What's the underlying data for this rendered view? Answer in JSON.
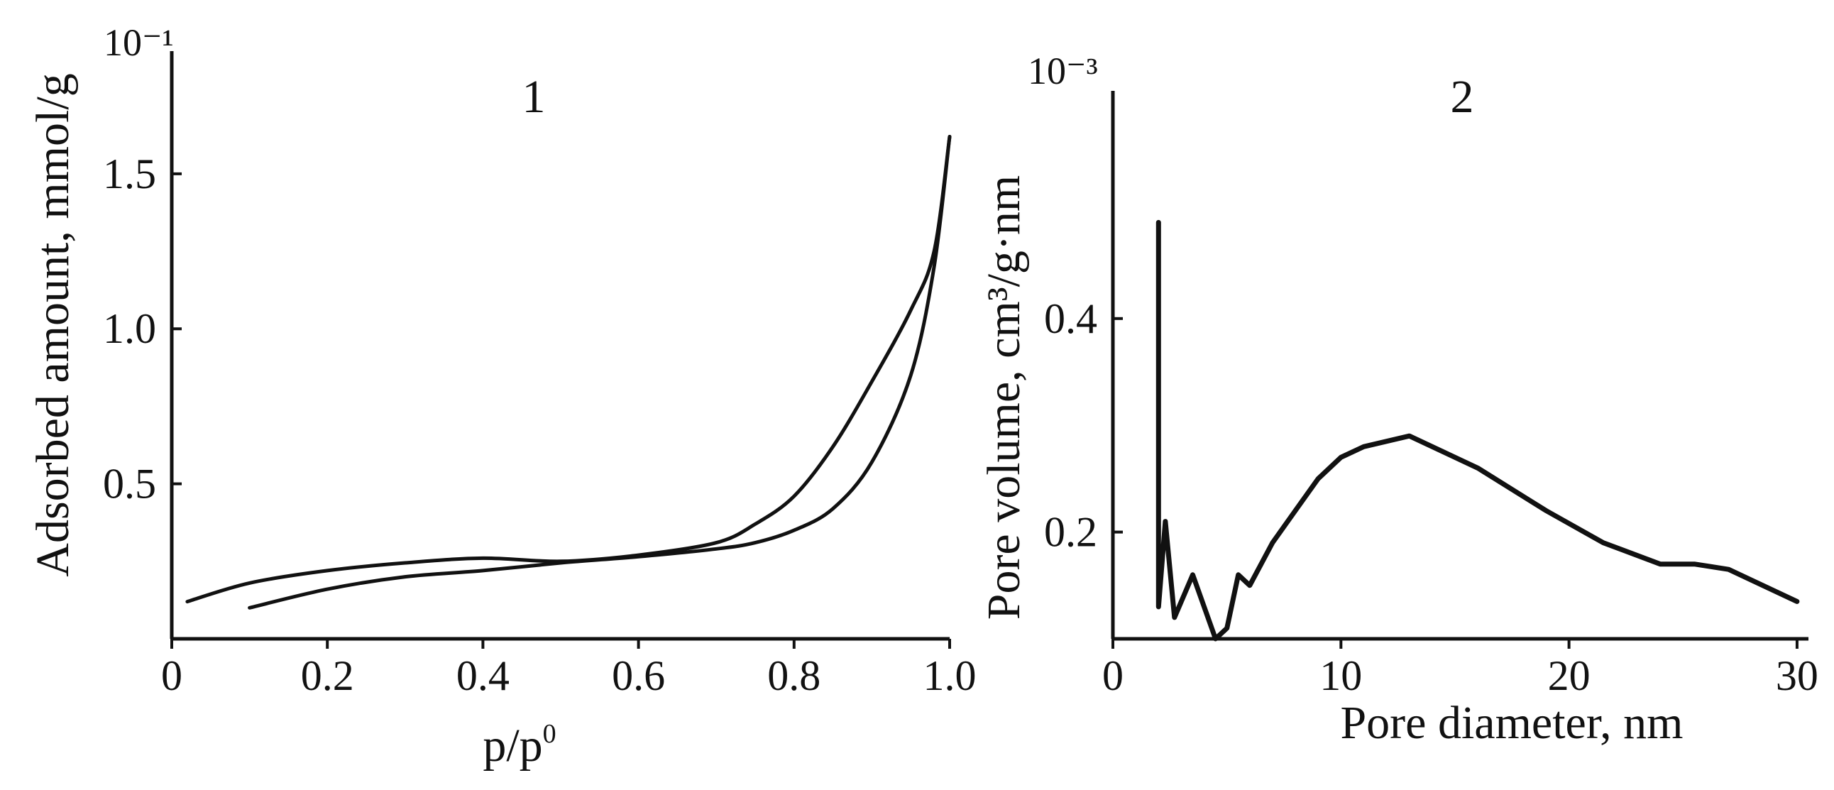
{
  "chart_data": [
    {
      "type": "line",
      "panel": "1",
      "title": "",
      "xlabel": "p/p⁰",
      "ylabel": "Adsorbed amount, mmol/g",
      "y_multiplier": "10⁻¹",
      "xlim": [
        0,
        1.0
      ],
      "ylim": [
        0,
        1.85
      ],
      "x_ticks": [
        "0",
        "0.2",
        "0.4",
        "0.6",
        "0.8",
        "1.0"
      ],
      "y_ticks": [
        "0.5",
        "1.0",
        "1.5"
      ],
      "grid": false,
      "series": [
        {
          "points": [
            [
              0.1,
              0.1
            ],
            [
              0.2,
              0.16
            ],
            [
              0.3,
              0.2
            ],
            [
              0.4,
              0.22
            ],
            [
              0.5,
              0.245
            ],
            [
              0.6,
              0.265
            ],
            [
              0.7,
              0.29
            ],
            [
              0.75,
              0.31
            ],
            [
              0.8,
              0.35
            ],
            [
              0.85,
              0.42
            ],
            [
              0.9,
              0.57
            ],
            [
              0.95,
              0.85
            ],
            [
              0.98,
              1.2
            ],
            [
              1.0,
              1.62
            ]
          ]
        },
        {
          "points": [
            [
              1.0,
              1.62
            ],
            [
              0.98,
              1.25
            ],
            [
              0.95,
              1.06
            ],
            [
              0.9,
              0.83
            ],
            [
              0.85,
              0.62
            ],
            [
              0.8,
              0.46
            ],
            [
              0.75,
              0.37
            ],
            [
              0.7,
              0.31
            ],
            [
              0.6,
              0.27
            ],
            [
              0.5,
              0.25
            ],
            [
              0.4,
              0.26
            ],
            [
              0.3,
              0.245
            ],
            [
              0.2,
              0.22
            ],
            [
              0.1,
              0.18
            ],
            [
              0.02,
              0.12
            ]
          ]
        }
      ]
    },
    {
      "type": "line",
      "panel": "2",
      "title": "",
      "xlabel": "Pore diameter, nm",
      "ylabel": "Pore volume, cm³/g·nm",
      "y_multiplier": "10⁻³",
      "xlim": [
        0,
        30.5
      ],
      "ylim": [
        0.1,
        0.6
      ],
      "x_ticks": [
        "0",
        "10",
        "20",
        "30"
      ],
      "y_ticks": [
        "0.2",
        "0.4"
      ],
      "grid": false,
      "series": [
        {
          "points": [
            [
              2.0,
              0.49
            ],
            [
              2.0,
              0.13
            ],
            [
              2.3,
              0.21
            ],
            [
              2.7,
              0.12
            ],
            [
              3.5,
              0.16
            ],
            [
              4.5,
              0.1
            ],
            [
              5.0,
              0.11
            ],
            [
              5.5,
              0.16
            ],
            [
              6.0,
              0.15
            ],
            [
              7.0,
              0.19
            ],
            [
              8.0,
              0.22
            ],
            [
              9.0,
              0.25
            ],
            [
              10.0,
              0.27
            ],
            [
              11.0,
              0.28
            ],
            [
              13.0,
              0.29
            ],
            [
              16.0,
              0.26
            ],
            [
              19.0,
              0.22
            ],
            [
              21.5,
              0.19
            ],
            [
              24.0,
              0.17
            ],
            [
              25.5,
              0.17
            ],
            [
              27.0,
              0.165
            ],
            [
              28.5,
              0.15
            ],
            [
              30.0,
              0.135
            ]
          ]
        }
      ]
    }
  ]
}
